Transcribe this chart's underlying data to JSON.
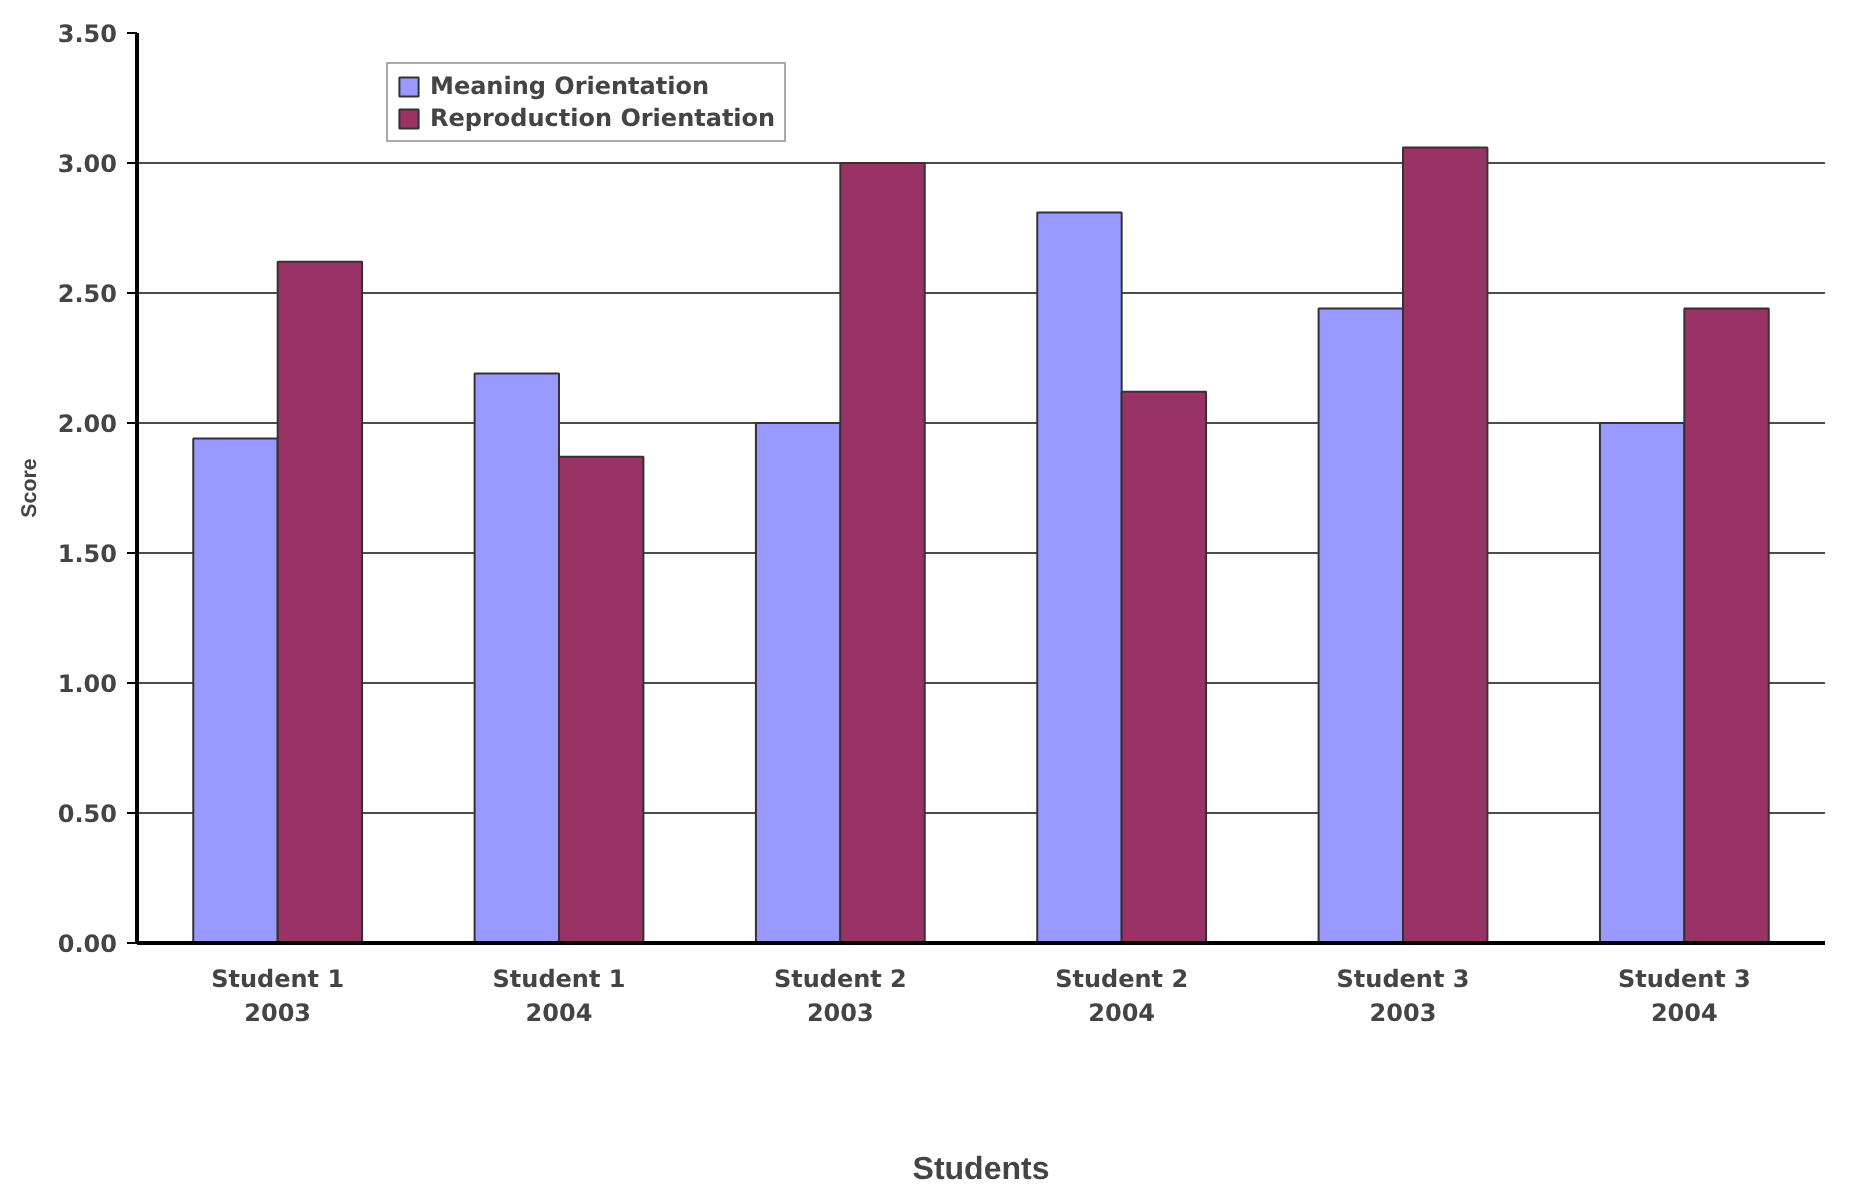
{
  "chart_data": {
    "type": "bar",
    "xlabel": "Students",
    "ylabel": "Score",
    "categories": [
      "Student 1\n2003",
      "Student 1\n2004",
      "Student 2\n2003",
      "Student 2\n2004",
      "Student 3\n2003",
      "Student 3\n2004"
    ],
    "series": [
      {
        "name": "Meaning Orientation",
        "color": "#9999ff",
        "values": [
          1.94,
          2.19,
          2.0,
          2.81,
          2.44,
          2.0
        ]
      },
      {
        "name": "Reproduction Orientation",
        "color": "#993366",
        "values": [
          2.62,
          1.87,
          3.0,
          2.12,
          3.06,
          2.44
        ]
      }
    ],
    "ylim": [
      0,
      3.5
    ],
    "yticks": [
      {
        "value": 0,
        "label": "0.00"
      },
      {
        "value": 0.5,
        "label": "0.50"
      },
      {
        "value": 1,
        "label": "1.00"
      },
      {
        "value": 1.5,
        "label": "1.50"
      },
      {
        "value": 2,
        "label": "2.00"
      },
      {
        "value": 2.5,
        "label": "2.50"
      },
      {
        "value": 3,
        "label": "3.00"
      },
      {
        "value": 3.5,
        "label": "3.50"
      }
    ],
    "grid": "y",
    "legend": "top left"
  }
}
